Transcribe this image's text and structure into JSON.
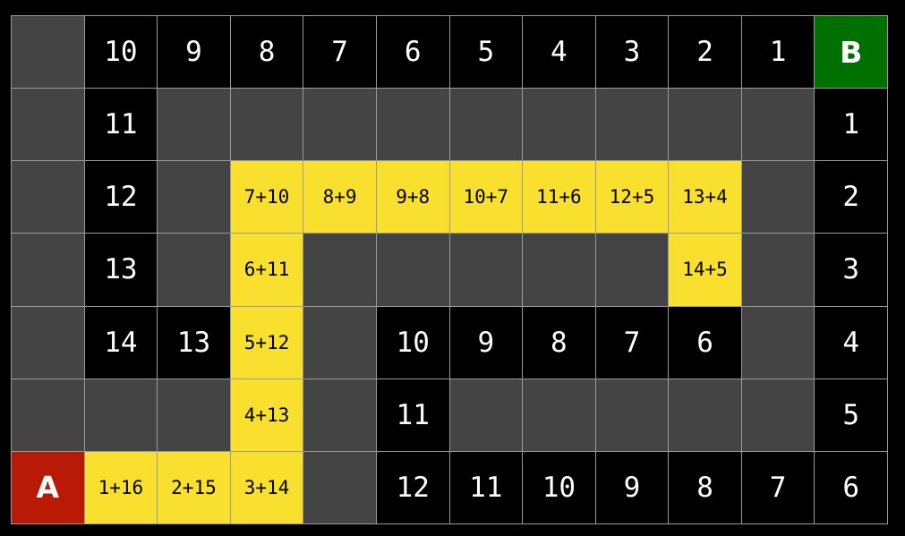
{
  "colors": {
    "wall": "#444444",
    "open": "#000000",
    "path": "#f9e02e",
    "start": "#b81a06",
    "goal": "#007000"
  },
  "grid": [
    [
      {
        "t": "wall"
      },
      {
        "t": "open",
        "v": "10"
      },
      {
        "t": "open",
        "v": "9"
      },
      {
        "t": "open",
        "v": "8"
      },
      {
        "t": "open",
        "v": "7"
      },
      {
        "t": "open",
        "v": "6"
      },
      {
        "t": "open",
        "v": "5"
      },
      {
        "t": "open",
        "v": "4"
      },
      {
        "t": "open",
        "v": "3"
      },
      {
        "t": "open",
        "v": "2"
      },
      {
        "t": "open",
        "v": "1"
      },
      {
        "t": "goal",
        "v": "B"
      }
    ],
    [
      {
        "t": "wall"
      },
      {
        "t": "open",
        "v": "11"
      },
      {
        "t": "wall"
      },
      {
        "t": "wall"
      },
      {
        "t": "wall"
      },
      {
        "t": "wall"
      },
      {
        "t": "wall"
      },
      {
        "t": "wall"
      },
      {
        "t": "wall"
      },
      {
        "t": "wall"
      },
      {
        "t": "wall"
      },
      {
        "t": "open",
        "v": "1"
      }
    ],
    [
      {
        "t": "wall"
      },
      {
        "t": "open",
        "v": "12"
      },
      {
        "t": "wall"
      },
      {
        "t": "path",
        "v": "7+10"
      },
      {
        "t": "path",
        "v": "8+9"
      },
      {
        "t": "path",
        "v": "9+8"
      },
      {
        "t": "path",
        "v": "10+7"
      },
      {
        "t": "path",
        "v": "11+6"
      },
      {
        "t": "path",
        "v": "12+5"
      },
      {
        "t": "path",
        "v": "13+4"
      },
      {
        "t": "wall"
      },
      {
        "t": "open",
        "v": "2"
      }
    ],
    [
      {
        "t": "wall"
      },
      {
        "t": "open",
        "v": "13"
      },
      {
        "t": "wall"
      },
      {
        "t": "path",
        "v": "6+11"
      },
      {
        "t": "wall"
      },
      {
        "t": "wall"
      },
      {
        "t": "wall"
      },
      {
        "t": "wall"
      },
      {
        "t": "wall"
      },
      {
        "t": "path",
        "v": "14+5"
      },
      {
        "t": "wall"
      },
      {
        "t": "open",
        "v": "3"
      }
    ],
    [
      {
        "t": "wall"
      },
      {
        "t": "open",
        "v": "14"
      },
      {
        "t": "open",
        "v": "13"
      },
      {
        "t": "path",
        "v": "5+12"
      },
      {
        "t": "wall"
      },
      {
        "t": "open",
        "v": "10"
      },
      {
        "t": "open",
        "v": "9"
      },
      {
        "t": "open",
        "v": "8"
      },
      {
        "t": "open",
        "v": "7"
      },
      {
        "t": "open",
        "v": "6"
      },
      {
        "t": "wall"
      },
      {
        "t": "open",
        "v": "4"
      }
    ],
    [
      {
        "t": "wall"
      },
      {
        "t": "wall"
      },
      {
        "t": "wall"
      },
      {
        "t": "path",
        "v": "4+13"
      },
      {
        "t": "wall"
      },
      {
        "t": "open",
        "v": "11"
      },
      {
        "t": "wall"
      },
      {
        "t": "wall"
      },
      {
        "t": "wall"
      },
      {
        "t": "wall"
      },
      {
        "t": "wall"
      },
      {
        "t": "open",
        "v": "5"
      }
    ],
    [
      {
        "t": "start",
        "v": "A"
      },
      {
        "t": "path",
        "v": "1+16"
      },
      {
        "t": "path",
        "v": "2+15"
      },
      {
        "t": "path",
        "v": "3+14"
      },
      {
        "t": "wall"
      },
      {
        "t": "open",
        "v": "12"
      },
      {
        "t": "open",
        "v": "11"
      },
      {
        "t": "open",
        "v": "10"
      },
      {
        "t": "open",
        "v": "9"
      },
      {
        "t": "open",
        "v": "8"
      },
      {
        "t": "open",
        "v": "7"
      },
      {
        "t": "open",
        "v": "6"
      }
    ]
  ]
}
